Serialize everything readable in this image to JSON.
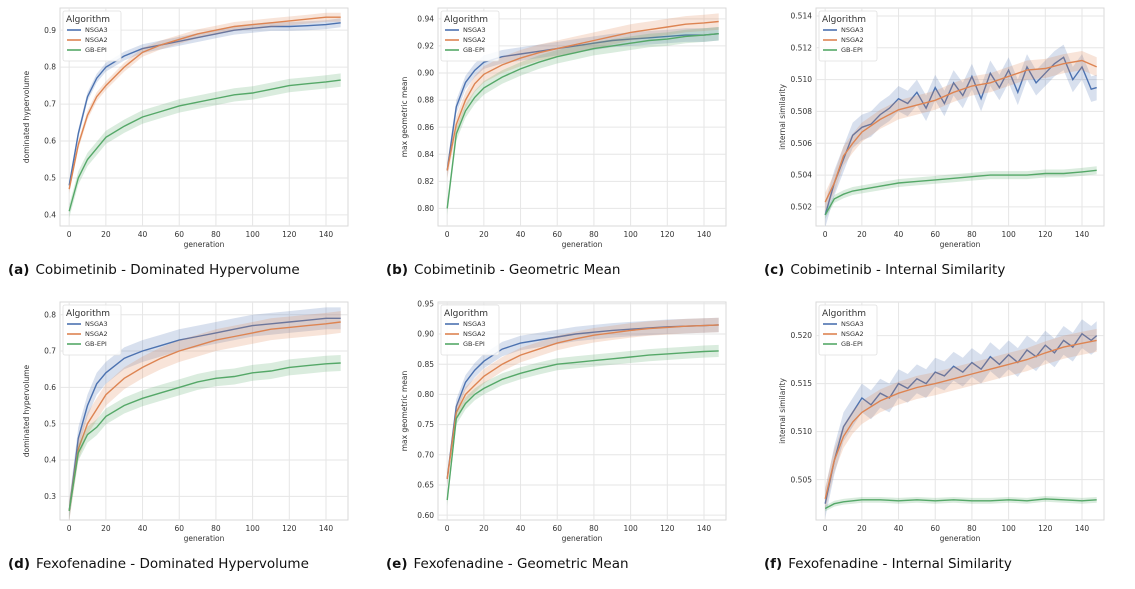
{
  "legend_title": "Algorithm",
  "colors": {
    "NSGA3": "#4c72b0",
    "NSGA2": "#dd8452",
    "GB-EPI": "#55a868",
    "plot_bg": "#ffffff",
    "grid": "#e6e6e6"
  },
  "chart_data": [
    {
      "type": "line",
      "tag": "(a)",
      "caption": "Cobimetinib - Dominated Hypervolume",
      "xlabel": "generation",
      "ylabel": "dominated hypervolume",
      "xlim": [
        -5,
        152
      ],
      "ylim": [
        0.37,
        0.96
      ],
      "xticks": [
        0,
        20,
        40,
        60,
        80,
        100,
        120,
        140
      ],
      "yticks": [
        0.4,
        0.5,
        0.6,
        0.7,
        0.8,
        0.9
      ],
      "ytick_labels": [
        "0.4",
        "0.5",
        "0.6",
        "0.7",
        "0.8",
        "0.9"
      ],
      "legend": "top-left",
      "grid": true,
      "series": [
        {
          "name": "NSGA3",
          "x": [
            0,
            5,
            10,
            15,
            20,
            30,
            40,
            50,
            60,
            70,
            80,
            90,
            100,
            110,
            120,
            130,
            140,
            148
          ],
          "y": [
            0.48,
            0.62,
            0.72,
            0.77,
            0.8,
            0.83,
            0.85,
            0.86,
            0.87,
            0.88,
            0.89,
            0.9,
            0.905,
            0.91,
            0.91,
            0.912,
            0.915,
            0.92
          ],
          "band": 0.012
        },
        {
          "name": "NSGA2",
          "x": [
            0,
            5,
            10,
            15,
            20,
            30,
            40,
            50,
            60,
            70,
            80,
            90,
            100,
            110,
            120,
            130,
            140,
            148
          ],
          "y": [
            0.47,
            0.59,
            0.67,
            0.72,
            0.75,
            0.8,
            0.84,
            0.86,
            0.875,
            0.89,
            0.9,
            0.91,
            0.915,
            0.92,
            0.925,
            0.93,
            0.935,
            0.935
          ],
          "band": 0.012
        },
        {
          "name": "GB-EPI",
          "x": [
            0,
            5,
            10,
            15,
            20,
            30,
            40,
            50,
            60,
            70,
            80,
            90,
            100,
            110,
            120,
            130,
            140,
            148
          ],
          "y": [
            0.41,
            0.5,
            0.55,
            0.58,
            0.61,
            0.64,
            0.665,
            0.68,
            0.695,
            0.705,
            0.715,
            0.725,
            0.73,
            0.74,
            0.75,
            0.755,
            0.76,
            0.765
          ],
          "band": 0.018
        }
      ]
    },
    {
      "type": "line",
      "tag": "(b)",
      "caption": "Cobimetinib - Geometric Mean",
      "xlabel": "generation",
      "ylabel": "max geometric mean",
      "xlim": [
        -5,
        152
      ],
      "ylim": [
        0.787,
        0.948
      ],
      "xticks": [
        0,
        20,
        40,
        60,
        80,
        100,
        120,
        140
      ],
      "yticks": [
        0.8,
        0.82,
        0.84,
        0.86,
        0.88,
        0.9,
        0.92,
        0.94
      ],
      "ytick_labels": [
        "0.80",
        "0.82",
        "0.84",
        "0.86",
        "0.88",
        "0.90",
        "0.92",
        "0.94"
      ],
      "legend": "top-left",
      "grid": true,
      "series": [
        {
          "name": "NSGA3",
          "x": [
            0,
            5,
            10,
            15,
            20,
            30,
            40,
            50,
            60,
            70,
            80,
            90,
            100,
            110,
            120,
            130,
            140,
            148
          ],
          "y": [
            0.828,
            0.875,
            0.893,
            0.902,
            0.908,
            0.912,
            0.914,
            0.916,
            0.918,
            0.92,
            0.922,
            0.924,
            0.925,
            0.926,
            0.927,
            0.928,
            0.928,
            0.929
          ],
          "band": 0.005
        },
        {
          "name": "NSGA2",
          "x": [
            0,
            5,
            10,
            15,
            20,
            30,
            40,
            50,
            60,
            70,
            80,
            90,
            100,
            110,
            120,
            130,
            140,
            148
          ],
          "y": [
            0.828,
            0.862,
            0.88,
            0.892,
            0.899,
            0.906,
            0.911,
            0.915,
            0.918,
            0.921,
            0.924,
            0.927,
            0.93,
            0.932,
            0.934,
            0.936,
            0.937,
            0.938
          ],
          "band": 0.006
        },
        {
          "name": "GB-EPI",
          "x": [
            0,
            5,
            10,
            15,
            20,
            30,
            40,
            50,
            60,
            70,
            80,
            90,
            100,
            110,
            120,
            130,
            140,
            148
          ],
          "y": [
            0.8,
            0.855,
            0.872,
            0.882,
            0.889,
            0.897,
            0.903,
            0.908,
            0.912,
            0.915,
            0.918,
            0.92,
            0.922,
            0.924,
            0.925,
            0.927,
            0.928,
            0.929
          ],
          "band": 0.005
        }
      ]
    },
    {
      "type": "line",
      "tag": "(c)",
      "caption": "Cobimetinib - Internal Similarity",
      "xlabel": "generation",
      "ylabel": "internal similarity",
      "xlim": [
        -5,
        152
      ],
      "ylim": [
        0.5008,
        0.5145
      ],
      "xticks": [
        0,
        20,
        40,
        60,
        80,
        100,
        120,
        140
      ],
      "yticks": [
        0.502,
        0.504,
        0.506,
        0.508,
        0.51,
        0.512,
        0.514
      ],
      "ytick_labels": [
        "0.502",
        "0.504",
        "0.506",
        "0.508",
        "0.510",
        "0.512",
        "0.514"
      ],
      "legend": "top-left",
      "grid": true,
      "series": [
        {
          "name": "NSGA3",
          "x": [
            0,
            5,
            10,
            15,
            20,
            25,
            30,
            35,
            40,
            45,
            50,
            55,
            60,
            65,
            70,
            75,
            80,
            85,
            90,
            95,
            100,
            105,
            110,
            115,
            120,
            125,
            130,
            135,
            140,
            145,
            148
          ],
          "y": [
            0.5015,
            0.5035,
            0.505,
            0.5065,
            0.507,
            0.5072,
            0.5078,
            0.5082,
            0.5088,
            0.5085,
            0.5092,
            0.5082,
            0.5095,
            0.5085,
            0.5098,
            0.509,
            0.5102,
            0.5088,
            0.5104,
            0.5095,
            0.5106,
            0.5092,
            0.5108,
            0.5098,
            0.5104,
            0.511,
            0.5114,
            0.51,
            0.5108,
            0.5094,
            0.5095
          ],
          "band": 0.0008
        },
        {
          "name": "NSGA2",
          "x": [
            0,
            5,
            10,
            15,
            20,
            30,
            40,
            50,
            60,
            70,
            80,
            90,
            100,
            110,
            120,
            130,
            140,
            148
          ],
          "y": [
            0.5023,
            0.5035,
            0.5052,
            0.506,
            0.5067,
            0.5075,
            0.5081,
            0.5084,
            0.5087,
            0.5092,
            0.5096,
            0.5098,
            0.5102,
            0.5106,
            0.5107,
            0.511,
            0.5112,
            0.5108
          ],
          "band": 0.0006
        },
        {
          "name": "GB-EPI",
          "x": [
            0,
            5,
            10,
            15,
            20,
            30,
            40,
            50,
            60,
            70,
            80,
            90,
            100,
            110,
            120,
            130,
            140,
            148
          ],
          "y": [
            0.5015,
            0.5025,
            0.5028,
            0.503,
            0.5031,
            0.5033,
            0.5035,
            0.5036,
            0.5037,
            0.5038,
            0.5039,
            0.504,
            0.504,
            0.504,
            0.5041,
            0.5041,
            0.5042,
            0.5043
          ],
          "band": 0.00025
        }
      ]
    },
    {
      "type": "line",
      "tag": "(d)",
      "caption": "Fexofenadine - Dominated Hypervolume",
      "xlabel": "generation",
      "ylabel": "dominated hypervolume",
      "xlim": [
        -5,
        152
      ],
      "ylim": [
        0.235,
        0.835
      ],
      "xticks": [
        0,
        20,
        40,
        60,
        80,
        100,
        120,
        140
      ],
      "yticks": [
        0.3,
        0.4,
        0.5,
        0.6,
        0.7,
        0.8
      ],
      "ytick_labels": [
        "0.3",
        "0.4",
        "0.5",
        "0.6",
        "0.7",
        "0.8"
      ],
      "legend": "top-left",
      "grid": true,
      "series": [
        {
          "name": "NSGA3",
          "x": [
            0,
            5,
            10,
            15,
            20,
            30,
            40,
            50,
            60,
            70,
            80,
            90,
            100,
            110,
            120,
            130,
            140,
            148
          ],
          "y": [
            0.26,
            0.46,
            0.55,
            0.61,
            0.64,
            0.68,
            0.7,
            0.715,
            0.73,
            0.74,
            0.75,
            0.76,
            0.77,
            0.775,
            0.78,
            0.785,
            0.79,
            0.79
          ],
          "band": 0.03
        },
        {
          "name": "NSGA2",
          "x": [
            0,
            5,
            10,
            15,
            20,
            30,
            40,
            50,
            60,
            70,
            80,
            90,
            100,
            110,
            120,
            130,
            140,
            148
          ],
          "y": [
            0.26,
            0.43,
            0.5,
            0.54,
            0.58,
            0.625,
            0.655,
            0.68,
            0.7,
            0.715,
            0.73,
            0.74,
            0.75,
            0.76,
            0.765,
            0.77,
            0.775,
            0.78
          ],
          "band": 0.03
        },
        {
          "name": "GB-EPI",
          "x": [
            0,
            5,
            10,
            15,
            20,
            30,
            40,
            50,
            60,
            70,
            80,
            90,
            100,
            110,
            120,
            130,
            140,
            148
          ],
          "y": [
            0.26,
            0.42,
            0.47,
            0.49,
            0.52,
            0.55,
            0.57,
            0.585,
            0.6,
            0.615,
            0.625,
            0.63,
            0.64,
            0.645,
            0.655,
            0.66,
            0.665,
            0.667
          ],
          "band": 0.022
        }
      ]
    },
    {
      "type": "line",
      "tag": "(e)",
      "caption": "Fexofenadine - Geometric Mean",
      "xlabel": "generation",
      "ylabel": "max geometric mean",
      "xlim": [
        -5,
        152
      ],
      "ylim": [
        0.592,
        0.953
      ],
      "xticks": [
        0,
        20,
        40,
        60,
        80,
        100,
        120,
        140
      ],
      "yticks": [
        0.6,
        0.65,
        0.7,
        0.75,
        0.8,
        0.85,
        0.9,
        0.95
      ],
      "ytick_labels": [
        "0.60",
        "0.65",
        "0.70",
        "0.75",
        "0.80",
        "0.85",
        "0.90",
        "0.95"
      ],
      "legend": "top-left",
      "grid": true,
      "series": [
        {
          "name": "NSGA3",
          "x": [
            0,
            5,
            10,
            15,
            20,
            30,
            40,
            50,
            60,
            70,
            80,
            90,
            100,
            110,
            120,
            130,
            140,
            148
          ],
          "y": [
            0.66,
            0.78,
            0.82,
            0.84,
            0.855,
            0.875,
            0.885,
            0.89,
            0.895,
            0.9,
            0.903,
            0.906,
            0.908,
            0.91,
            0.912,
            0.913,
            0.914,
            0.915
          ],
          "band": 0.012
        },
        {
          "name": "NSGA2",
          "x": [
            0,
            5,
            10,
            15,
            20,
            30,
            40,
            50,
            60,
            70,
            80,
            90,
            100,
            110,
            120,
            130,
            140,
            148
          ],
          "y": [
            0.66,
            0.77,
            0.8,
            0.815,
            0.83,
            0.85,
            0.865,
            0.875,
            0.885,
            0.892,
            0.898,
            0.902,
            0.906,
            0.909,
            0.911,
            0.913,
            0.914,
            0.915
          ],
          "band": 0.012
        },
        {
          "name": "GB-EPI",
          "x": [
            0,
            5,
            10,
            15,
            20,
            30,
            40,
            50,
            60,
            70,
            80,
            90,
            100,
            110,
            120,
            130,
            140,
            148
          ],
          "y": [
            0.625,
            0.76,
            0.785,
            0.8,
            0.81,
            0.825,
            0.835,
            0.843,
            0.85,
            0.853,
            0.856,
            0.859,
            0.862,
            0.865,
            0.867,
            0.869,
            0.871,
            0.872
          ],
          "band": 0.01
        }
      ]
    },
    {
      "type": "line",
      "tag": "(f)",
      "caption": "Fexofenadine - Internal Similarity",
      "xlabel": "generation",
      "ylabel": "internal similarity",
      "xlim": [
        -5,
        152
      ],
      "ylim": [
        0.5008,
        0.5235
      ],
      "xticks": [
        0,
        20,
        40,
        60,
        80,
        100,
        120,
        140
      ],
      "yticks": [
        0.505,
        0.51,
        0.515,
        0.52
      ],
      "ytick_labels": [
        "0.505",
        "0.510",
        "0.515",
        "0.520"
      ],
      "legend": "top-left",
      "grid": true,
      "series": [
        {
          "name": "NSGA3",
          "x": [
            0,
            5,
            10,
            15,
            20,
            25,
            30,
            35,
            40,
            45,
            50,
            55,
            60,
            65,
            70,
            75,
            80,
            85,
            90,
            95,
            100,
            105,
            110,
            115,
            120,
            125,
            130,
            135,
            140,
            145,
            148
          ],
          "y": [
            0.5025,
            0.507,
            0.5105,
            0.512,
            0.5135,
            0.5128,
            0.514,
            0.5135,
            0.515,
            0.5145,
            0.5155,
            0.515,
            0.5162,
            0.5158,
            0.5168,
            0.5162,
            0.5172,
            0.5165,
            0.5178,
            0.517,
            0.518,
            0.5172,
            0.5185,
            0.5178,
            0.519,
            0.5182,
            0.5195,
            0.5188,
            0.5202,
            0.5195,
            0.52
          ],
          "band": 0.0015
        },
        {
          "name": "NSGA2",
          "x": [
            0,
            5,
            10,
            15,
            20,
            30,
            40,
            50,
            60,
            70,
            80,
            90,
            100,
            110,
            120,
            130,
            140,
            148
          ],
          "y": [
            0.503,
            0.507,
            0.5095,
            0.511,
            0.512,
            0.5132,
            0.514,
            0.5146,
            0.515,
            0.5155,
            0.516,
            0.5165,
            0.517,
            0.5175,
            0.5182,
            0.5188,
            0.5192,
            0.5195
          ],
          "band": 0.0012
        },
        {
          "name": "GB-EPI",
          "x": [
            0,
            5,
            10,
            15,
            20,
            30,
            40,
            50,
            60,
            70,
            80,
            90,
            100,
            110,
            120,
            130,
            140,
            148
          ],
          "y": [
            0.502,
            0.5025,
            0.5027,
            0.5028,
            0.5029,
            0.5029,
            0.5028,
            0.5029,
            0.5028,
            0.5029,
            0.5028,
            0.5028,
            0.5029,
            0.5028,
            0.503,
            0.5029,
            0.5028,
            0.5029
          ],
          "band": 0.0003
        }
      ]
    }
  ]
}
